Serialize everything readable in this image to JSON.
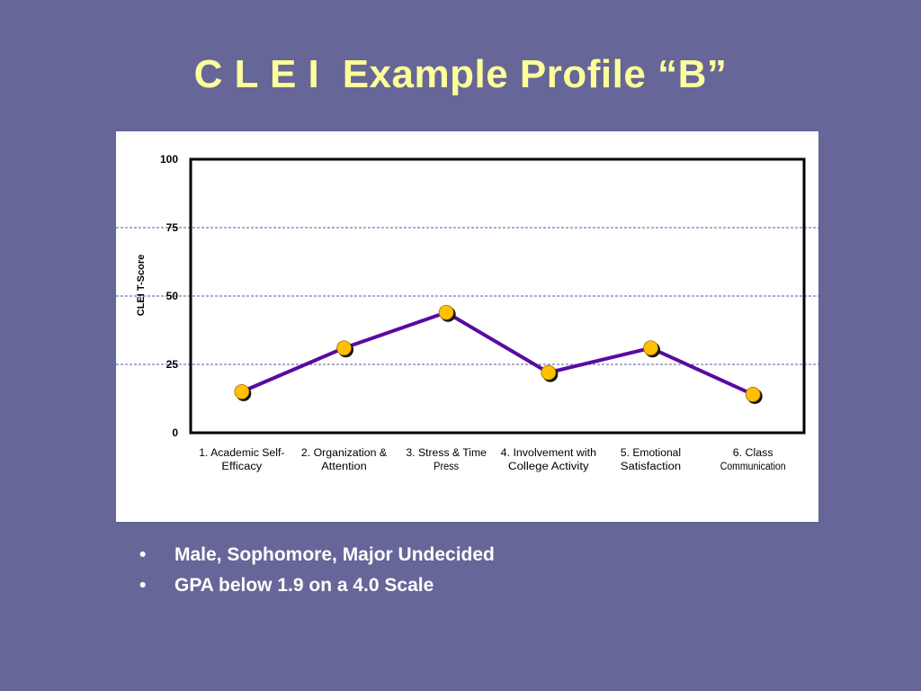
{
  "slide": {
    "title": "C L E I  Example Profile “B”",
    "bullet_symbol": "•",
    "bullets": [
      "Male, Sophomore, Major Undecided",
      "GPA below 1.9 on a 4.0 Scale"
    ]
  },
  "chart_data": {
    "type": "line",
    "title": "",
    "xlabel": "",
    "ylabel": "CLEI  T-Score",
    "categories": [
      [
        "1. Academic Self-",
        "Efficacy"
      ],
      [
        "2. Organization &",
        "Attention"
      ],
      [
        "3. Stress & Time",
        "Press"
      ],
      [
        "4. Involvement with",
        "College Activity"
      ],
      [
        "5. Emotional",
        "Satisfaction"
      ],
      [
        "6. Class",
        "Communication"
      ]
    ],
    "series": [
      {
        "values": [
          15,
          31,
          44,
          22,
          31,
          14
        ]
      }
    ],
    "ylim": [
      0,
      100
    ],
    "yticks": [
      "0",
      "25",
      "50",
      "75",
      "100"
    ],
    "grid": true,
    "grid_style": "dashed horizontal at 25, 50, 75",
    "legend": "none",
    "colors": {
      "line": "#5a0aa0",
      "marker_fill": "#ffc000",
      "marker_shadow": "#111111",
      "gridline": "#5555aa",
      "slide_background": "#666699",
      "title_text": "#ffff99",
      "bullet_text": "#ffffff"
    }
  }
}
